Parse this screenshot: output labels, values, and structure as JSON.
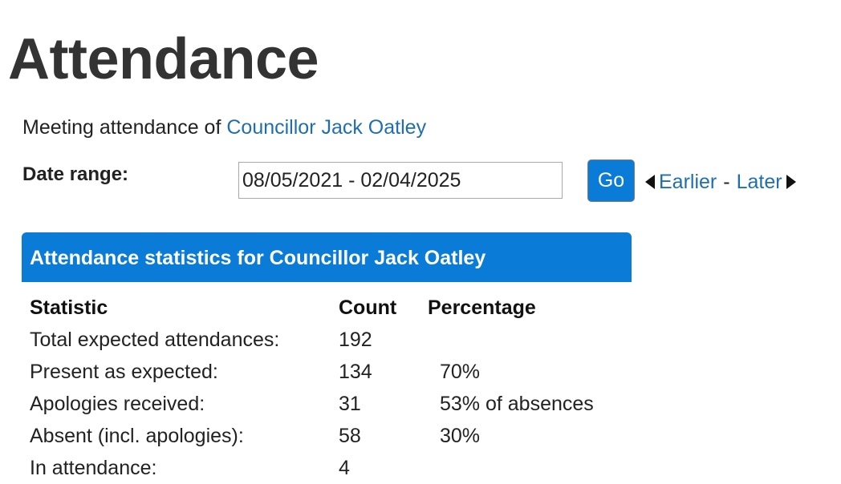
{
  "page": {
    "title": "Attendance"
  },
  "intro": {
    "prefix": "Meeting attendance of ",
    "councillor_link": "Councillor Jack Oatley"
  },
  "date_range": {
    "label": "Date range:",
    "value": "08/05/2021 - 02/04/2025",
    "go_label": "Go",
    "earlier_label": "Earlier",
    "separator": "-",
    "later_label": "Later"
  },
  "stats_panel": {
    "title": "Attendance statistics for Councillor Jack Oatley",
    "accent_color": "#0a7bd6",
    "columns": {
      "statistic": "Statistic",
      "count": "Count",
      "percentage": "Percentage"
    },
    "rows": [
      {
        "statistic": "Total expected attendances:",
        "count": "192",
        "percentage": ""
      },
      {
        "statistic": "Present as expected:",
        "count": "134",
        "percentage": "70%"
      },
      {
        "statistic": "Apologies received:",
        "count": "31",
        "percentage": "53% of absences"
      },
      {
        "statistic": "Absent (incl. apologies):",
        "count": "58",
        "percentage": "30%"
      },
      {
        "statistic": "In attendance:",
        "count": "4",
        "percentage": ""
      }
    ]
  },
  "icons": {
    "earlier": "triangle-left-icon",
    "later": "triangle-right-icon"
  }
}
